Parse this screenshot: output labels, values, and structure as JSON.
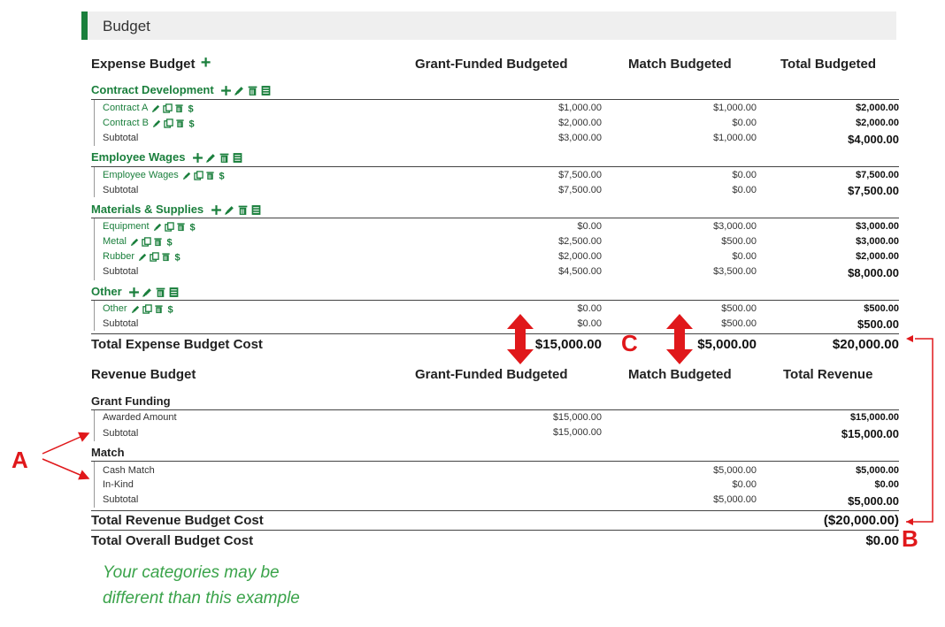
{
  "panel": {
    "title": "Budget"
  },
  "expense": {
    "header": {
      "label": "Expense Budget",
      "col_grant": "Grant-Funded Budgeted",
      "col_match": "Match Budgeted",
      "col_total": "Total Budgeted"
    },
    "categories": [
      {
        "name": "Contract Development",
        "items": [
          {
            "label": "Contract A",
            "grant": "$1,000.00",
            "match": "$1,000.00",
            "total": "$2,000.00"
          },
          {
            "label": "Contract B",
            "grant": "$2,000.00",
            "match": "$0.00",
            "total": "$2,000.00"
          }
        ],
        "subtotal": {
          "label": "Subtotal",
          "grant": "$3,000.00",
          "match": "$1,000.00",
          "total": "$4,000.00"
        }
      },
      {
        "name": "Employee Wages",
        "items": [
          {
            "label": "Employee Wages",
            "grant": "$7,500.00",
            "match": "$0.00",
            "total": "$7,500.00"
          }
        ],
        "subtotal": {
          "label": "Subtotal",
          "grant": "$7,500.00",
          "match": "$0.00",
          "total": "$7,500.00"
        }
      },
      {
        "name": "Materials & Supplies",
        "items": [
          {
            "label": "Equipment",
            "grant": "$0.00",
            "match": "$3,000.00",
            "total": "$3,000.00"
          },
          {
            "label": "Metal",
            "grant": "$2,500.00",
            "match": "$500.00",
            "total": "$3,000.00"
          },
          {
            "label": "Rubber",
            "grant": "$2,000.00",
            "match": "$0.00",
            "total": "$2,000.00"
          }
        ],
        "subtotal": {
          "label": "Subtotal",
          "grant": "$4,500.00",
          "match": "$3,500.00",
          "total": "$8,000.00"
        }
      },
      {
        "name": "Other",
        "items": [
          {
            "label": "Other",
            "grant": "$0.00",
            "match": "$500.00",
            "total": "$500.00"
          }
        ],
        "subtotal": {
          "label": "Subtotal",
          "grant": "$0.00",
          "match": "$500.00",
          "total": "$500.00"
        }
      }
    ],
    "total": {
      "label": "Total Expense Budget Cost",
      "grant": "$15,000.00",
      "match": "$5,000.00",
      "total": "$20,000.00"
    }
  },
  "revenue": {
    "header": {
      "label": "Revenue Budget",
      "col_grant": "Grant-Funded Budgeted",
      "col_match": "Match Budgeted",
      "col_total": "Total Revenue"
    },
    "grant_funding": {
      "name": "Grant Funding",
      "awarded": {
        "label": "Awarded Amount",
        "grant": "$15,000.00",
        "total": "$15,000.00"
      },
      "subtotal": {
        "label": "Subtotal",
        "grant": "$15,000.00",
        "total": "$15,000.00"
      }
    },
    "match": {
      "name": "Match",
      "cash": {
        "label": "Cash Match",
        "match": "$5,000.00",
        "total": "$5,000.00"
      },
      "inkind": {
        "label": "In-Kind",
        "match": "$0.00",
        "total": "$0.00"
      },
      "subtotal": {
        "label": "Subtotal",
        "match": "$5,000.00",
        "total": "$5,000.00"
      }
    },
    "total": {
      "label": "Total Revenue Budget Cost",
      "total": "($20,000.00)"
    },
    "overall": {
      "label": "Total Overall Budget Cost",
      "total": "$0.00"
    }
  },
  "annotations": {
    "a": "A",
    "b": "B",
    "c": "C"
  },
  "note": {
    "line1": "Your categories may be",
    "line2": "different than this example"
  },
  "colors": {
    "green": "#1a7f3c",
    "red": "#e0181b",
    "note_green": "#3aa34a"
  },
  "icons": [
    "plus-icon",
    "pencil-icon",
    "copy-icon",
    "trash-icon",
    "ledger-icon",
    "dollar-icon"
  ]
}
